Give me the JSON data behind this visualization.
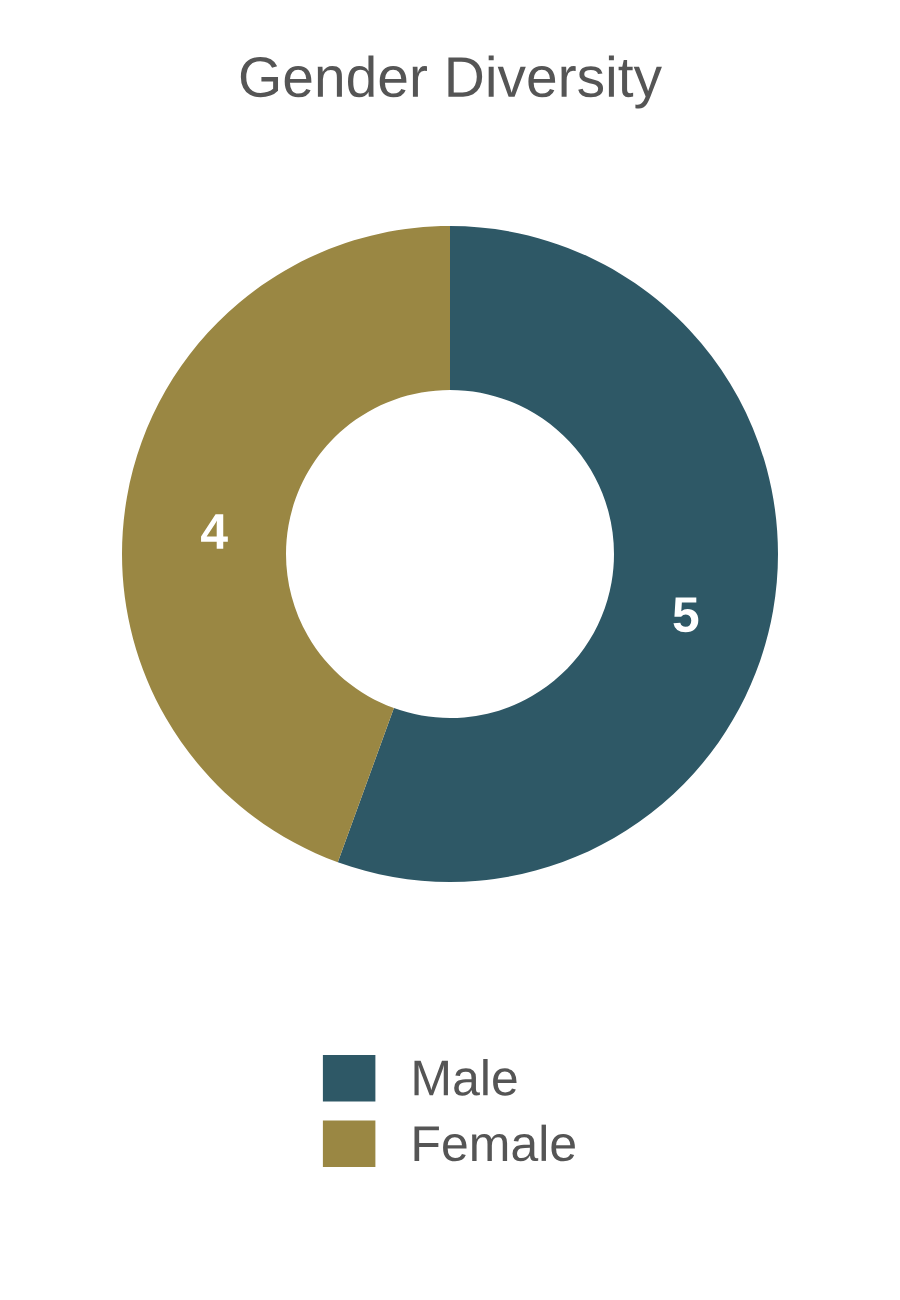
{
  "chart_data": {
    "type": "donut",
    "title": "Gender Diversity",
    "categories": [
      "Male",
      "Female"
    ],
    "values": [
      5,
      4
    ],
    "colors": [
      "#2e5866",
      "#9a8743"
    ],
    "data_labels": true,
    "legend": "bottom"
  }
}
